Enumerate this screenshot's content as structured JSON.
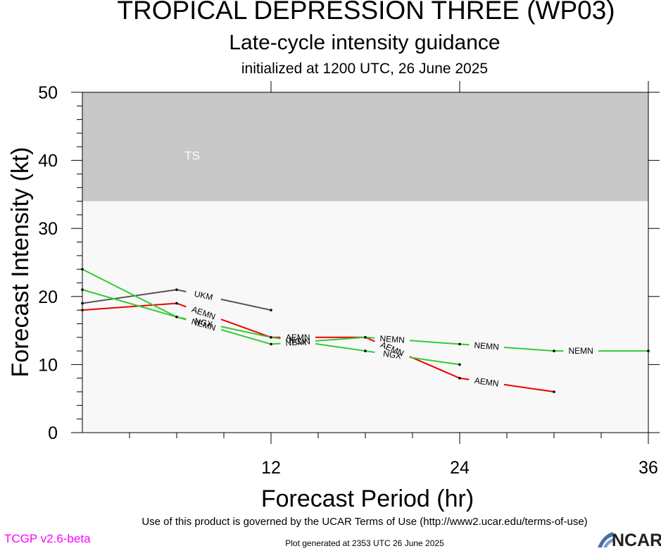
{
  "header": {
    "title": "TROPICAL DEPRESSION THREE (WP03)",
    "subtitle": "Late-cycle intensity guidance",
    "init_line": "initialized at 1200 UTC, 26 June 2025"
  },
  "footer": {
    "terms": "Use of this product is governed by the UCAR Terms of Use (http://www2.ucar.edu/terms-of-use)",
    "generated": "Plot generated at 2353 UTC   26 June 2025",
    "version": "TCGP v2.6-beta",
    "logo_text": "NCAR"
  },
  "chart_data": {
    "type": "line",
    "xlabel": "Forecast Period (hr)",
    "ylabel": "Forecast Intensity (kt)",
    "xlim": [
      0,
      36
    ],
    "ylim": [
      0,
      50
    ],
    "xticks": [
      12,
      24,
      36
    ],
    "yticks": [
      0,
      10,
      20,
      30,
      40,
      50
    ],
    "grid": false,
    "bands": [
      {
        "label": "TS",
        "from": 34,
        "to": 50,
        "color": "#c8c8c8"
      },
      {
        "label": "",
        "from": 0,
        "to": 34,
        "color": "#f8f8f8"
      }
    ],
    "series": [
      {
        "name": "UKM",
        "color": "#555555",
        "x": [
          0,
          6,
          12
        ],
        "y": [
          19,
          21,
          18
        ]
      },
      {
        "name": "AEMN",
        "color": "#ee0000",
        "x": [
          0,
          6,
          12,
          18,
          24,
          30
        ],
        "y": [
          18,
          19,
          14,
          14,
          8,
          6
        ]
      },
      {
        "name": "NGX",
        "color": "#33cc33",
        "x": [
          0,
          6,
          12,
          18,
          24
        ],
        "y": [
          24,
          17,
          14,
          12,
          10
        ]
      },
      {
        "name": "NEMN",
        "color": "#33cc33",
        "x": [
          0,
          6,
          12,
          18,
          24,
          30,
          36
        ],
        "y": [
          21,
          17,
          13,
          14,
          13,
          12,
          12
        ]
      }
    ]
  }
}
